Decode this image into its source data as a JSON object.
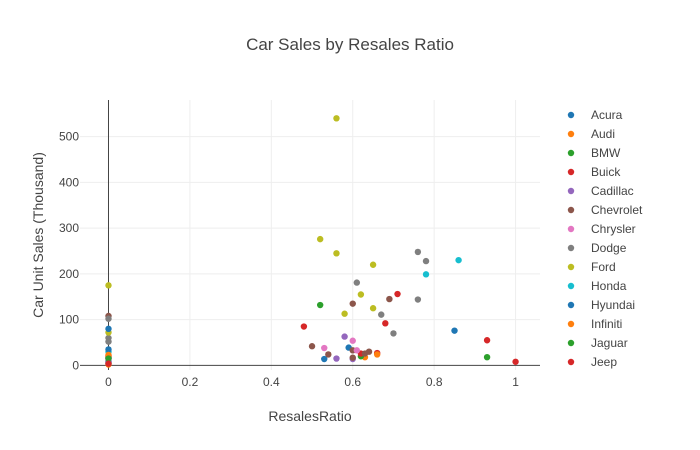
{
  "chart_data": {
    "type": "scatter",
    "title": "Car Sales by Resales Ratio",
    "xlabel": "ResalesRatio",
    "ylabel": "Car Unit Sales (Thousand)",
    "xlim": [
      -0.07,
      1.06
    ],
    "ylim": [
      -10,
      580
    ],
    "xticks": [
      0,
      0.2,
      0.4,
      0.6,
      0.8,
      1
    ],
    "xtick_labels": [
      "0",
      "0.2",
      "0.4",
      "0.6",
      "0.8",
      "1"
    ],
    "yticks": [
      0,
      100,
      200,
      300,
      400,
      500
    ],
    "ytick_labels": [
      "0",
      "100",
      "200",
      "300",
      "400",
      "500"
    ],
    "grid": true,
    "legend_position": "right",
    "series": [
      {
        "name": "Acura",
        "color": "#1f77b4",
        "points": [
          [
            0,
            16
          ],
          [
            0.59,
            39
          ],
          [
            0.53,
            14
          ],
          [
            0,
            8
          ]
        ]
      },
      {
        "name": "Audi",
        "color": "#ff7f0e",
        "points": [
          [
            0,
            20
          ],
          [
            0.63,
            18
          ],
          [
            0,
            2
          ]
        ]
      },
      {
        "name": "BMW",
        "color": "#2ca02c",
        "points": [
          [
            0,
            10
          ],
          [
            0.62,
            20
          ],
          [
            0,
            17
          ]
        ]
      },
      {
        "name": "Buick",
        "color": "#d62728",
        "points": [
          [
            0.62,
            26
          ],
          [
            0.68,
            92
          ],
          [
            0.66,
            27
          ],
          [
            0,
            21
          ]
        ]
      },
      {
        "name": "Cadillac",
        "color": "#9467bd",
        "points": [
          [
            0,
            14
          ],
          [
            0.58,
            63
          ],
          [
            0.56,
            15
          ],
          [
            0.6,
            14
          ],
          [
            0,
            9
          ]
        ]
      },
      {
        "name": "Chevrolet",
        "color": "#8c564b",
        "points": [
          [
            0,
            108
          ],
          [
            0.69,
            145
          ],
          [
            0.6,
            135
          ],
          [
            0.54,
            24
          ],
          [
            0.5,
            42
          ],
          [
            0.63,
            26
          ],
          [
            0.6,
            17
          ],
          [
            0.6,
            33
          ],
          [
            0.64,
            30
          ]
        ]
      },
      {
        "name": "Chrysler",
        "color": "#e377c2",
        "points": [
          [
            0,
            15
          ],
          [
            0.6,
            54
          ],
          [
            0.61,
            33
          ],
          [
            0.53,
            38
          ],
          [
            0,
            6
          ]
        ]
      },
      {
        "name": "Dodge",
        "color": "#7f7f7f",
        "points": [
          [
            0,
            102
          ],
          [
            0.76,
            248
          ],
          [
            0.78,
            228
          ],
          [
            0.61,
            181
          ],
          [
            0.67,
            111
          ],
          [
            0.76,
            144
          ],
          [
            0,
            60
          ],
          [
            0.7,
            70
          ],
          [
            0,
            52
          ]
        ]
      },
      {
        "name": "Ford",
        "color": "#bcbd22",
        "points": [
          [
            0,
            175
          ],
          [
            0.56,
            540
          ],
          [
            0.52,
            276
          ],
          [
            0.56,
            245
          ],
          [
            0.65,
            220
          ],
          [
            0.62,
            155
          ],
          [
            0.65,
            125
          ],
          [
            0.58,
            113
          ],
          [
            0,
            72
          ]
        ]
      },
      {
        "name": "Honda",
        "color": "#17becf",
        "points": [
          [
            0,
            5
          ],
          [
            0.86,
            230
          ],
          [
            0.78,
            199
          ],
          [
            0,
            30
          ]
        ]
      },
      {
        "name": "Hyundai",
        "color": "#1f77b4",
        "points": [
          [
            0,
            80
          ],
          [
            0.85,
            76
          ],
          [
            0,
            35
          ]
        ]
      },
      {
        "name": "Infiniti",
        "color": "#ff7f0e",
        "points": [
          [
            0,
            23
          ],
          [
            0.66,
            24
          ]
        ]
      },
      {
        "name": "Jaguar",
        "color": "#2ca02c",
        "points": [
          [
            0,
            15
          ],
          [
            0.52,
            132
          ],
          [
            0.93,
            18
          ]
        ]
      },
      {
        "name": "Jeep",
        "color": "#d62728",
        "points": [
          [
            0.71,
            156
          ],
          [
            0.48,
            85
          ],
          [
            0.93,
            55
          ],
          [
            0,
            4
          ],
          [
            1.0,
            8
          ]
        ]
      }
    ]
  }
}
